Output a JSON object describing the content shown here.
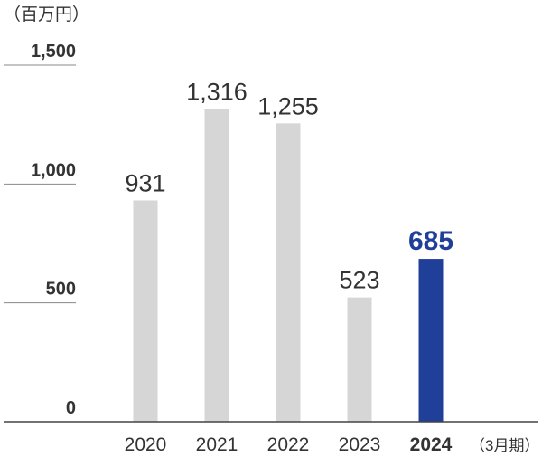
{
  "chart_data": {
    "type": "bar",
    "unit_label": "（百万円）",
    "x_unit_label": "（3月期）",
    "categories": [
      "2020",
      "2021",
      "2022",
      "2023",
      "2024"
    ],
    "values": [
      931,
      1316,
      1255,
      523,
      685
    ],
    "value_labels": [
      "931",
      "1,316",
      "1,255",
      "523",
      "685"
    ],
    "highlight_index": 4,
    "ylim": [
      0,
      1500
    ],
    "y_ticks": [
      {
        "value": 0,
        "label": "0"
      },
      {
        "value": 500,
        "label": "500"
      },
      {
        "value": 1000,
        "label": "1,000"
      },
      {
        "value": 1500,
        "label": "1,500"
      }
    ],
    "grid": false,
    "colors": {
      "bar": "#d6d6d6",
      "highlight": "#1f3f99",
      "text": "#333333",
      "axis": "#444444"
    }
  }
}
